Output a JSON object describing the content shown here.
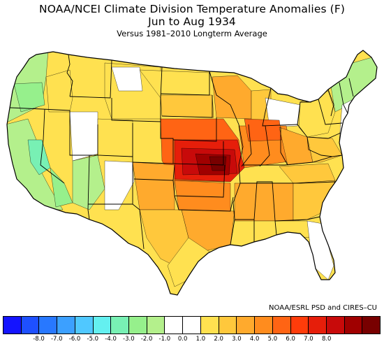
{
  "title_line1": "NOAA/NCEI Climate Division Temperature Anomalies (F)",
  "title_line2": "Jun to Aug 1934",
  "subtitle": "Versus 1981–2010 Longterm Average",
  "credit": "NOAA/ESRL PSD and CIRES–CU",
  "map": {
    "region": "Contiguous United States climate divisions",
    "variable": "Temperature anomaly",
    "units": "F",
    "background_color": "#ffffff",
    "state_border_color": "#000000"
  },
  "colorbar": {
    "colors": [
      "#1414ff",
      "#1e50ff",
      "#2878ff",
      "#3ca0ff",
      "#50c8ff",
      "#64f0f0",
      "#78f0b4",
      "#96f08c",
      "#b4f08c",
      "#ffffff",
      "#ffffff",
      "#ffe150",
      "#ffc83c",
      "#ffaa2d",
      "#ff8c1e",
      "#ff6414",
      "#ff3c0a",
      "#e61e0a",
      "#c80a0a",
      "#a00000",
      "#780000"
    ],
    "tick_labels": [
      "-8.0",
      "-7.0",
      "-6.0",
      "-5.0",
      "-4.0",
      "-3.0",
      "-2.0",
      "-1.0",
      "0.0",
      "1.0",
      "2.0",
      "3.0",
      "4.0",
      "5.0",
      "6.0",
      "7.0",
      "8.0"
    ]
  }
}
